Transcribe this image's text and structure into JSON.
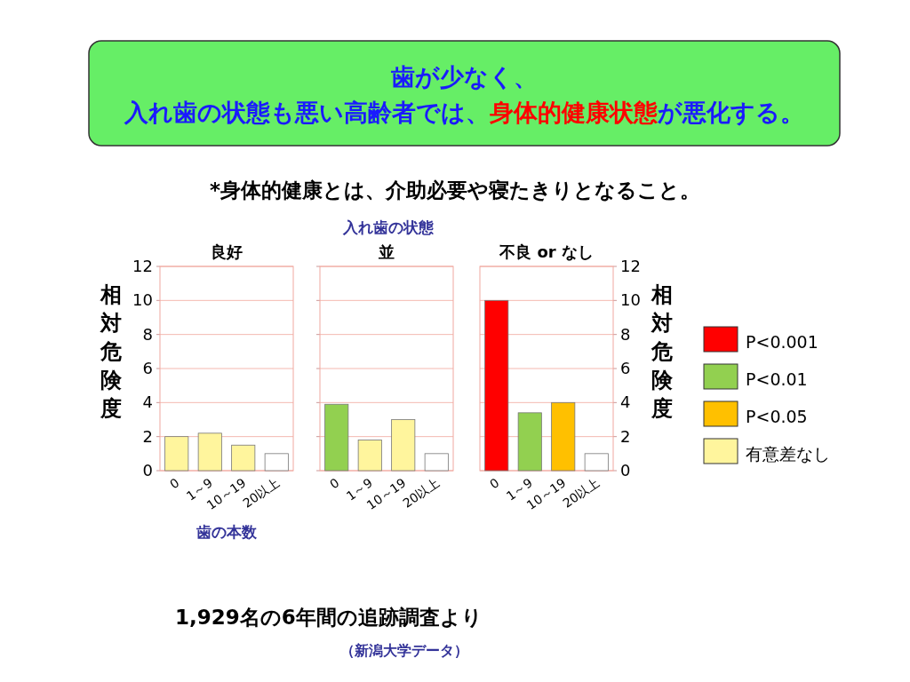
{
  "chart_data": [
    {
      "type": "other",
      "title": "歯が少なく、入れ歯の状態も悪い高齢者では、**身体的健康状態**が悪化する。",
      "subtitle": "*身体的健康とは、介助必要や寝たきりとなること。",
      "annotations": [
        "入れ歯の状態",
        "1,929名の6年間の追跡調査より",
        "（新潟大学データ）"
      ]
    },
    {
      "type": "bar",
      "title": "良好",
      "categories": [
        "0",
        "1～9",
        "10～19",
        "20以上"
      ],
      "ylim": [
        0,
        12
      ],
      "yticks": [
        0,
        2,
        4,
        6,
        8,
        10,
        12
      ],
      "ylabel": "相対危険度",
      "xlabel": "歯の本数",
      "grid": "y",
      "series": [
        {
          "color": "#fff59d",
          "values": [
            2,
            2.2,
            1.5,
            null
          ]
        },
        {
          "color": "#ffffff",
          "values": [
            null,
            null,
            null,
            1
          ]
        }
      ]
    },
    {
      "type": "bar",
      "title": "並",
      "categories": [
        "0",
        "1～9",
        "10～19",
        "20以上"
      ],
      "ylim": [
        0,
        12
      ],
      "yticks": [
        0,
        2,
        4,
        6,
        8,
        10,
        12
      ],
      "tick_labels": "x",
      "grid": "y",
      "series": [
        {
          "color": "#92d050",
          "values": [
            3.9,
            null,
            null,
            null
          ]
        },
        {
          "color": "#fff59d",
          "values": [
            null,
            1.8,
            3,
            null
          ]
        },
        {
          "color": "#ffffff",
          "values": [
            null,
            null,
            null,
            1
          ]
        }
      ]
    },
    {
      "type": "bar",
      "title": "不良 or なし",
      "categories": [
        "0",
        "1～9",
        "10～19",
        "20以上"
      ],
      "ylim": [
        0,
        12
      ],
      "yticks": [
        0,
        2,
        4,
        6,
        8,
        10,
        12
      ],
      "ylabel": "相対危険度",
      "grid": "y",
      "legend": "right",
      "series": [
        {
          "name": "P<0.001",
          "color": "#ff0000",
          "values": [
            10,
            null,
            null,
            null
          ]
        },
        {
          "name": "P<0.01",
          "color": "#92d050",
          "values": [
            null,
            3.4,
            null,
            null
          ]
        },
        {
          "name": "P<0.05",
          "color": "#ffc000",
          "values": [
            null,
            null,
            4,
            null
          ]
        },
        {
          "name": "有意差なし",
          "color": "#fff59d",
          "values": [
            null,
            null,
            null,
            null
          ]
        },
        {
          "color": "#ffffff",
          "values": [
            null,
            null,
            null,
            1
          ]
        }
      ]
    }
  ]
}
